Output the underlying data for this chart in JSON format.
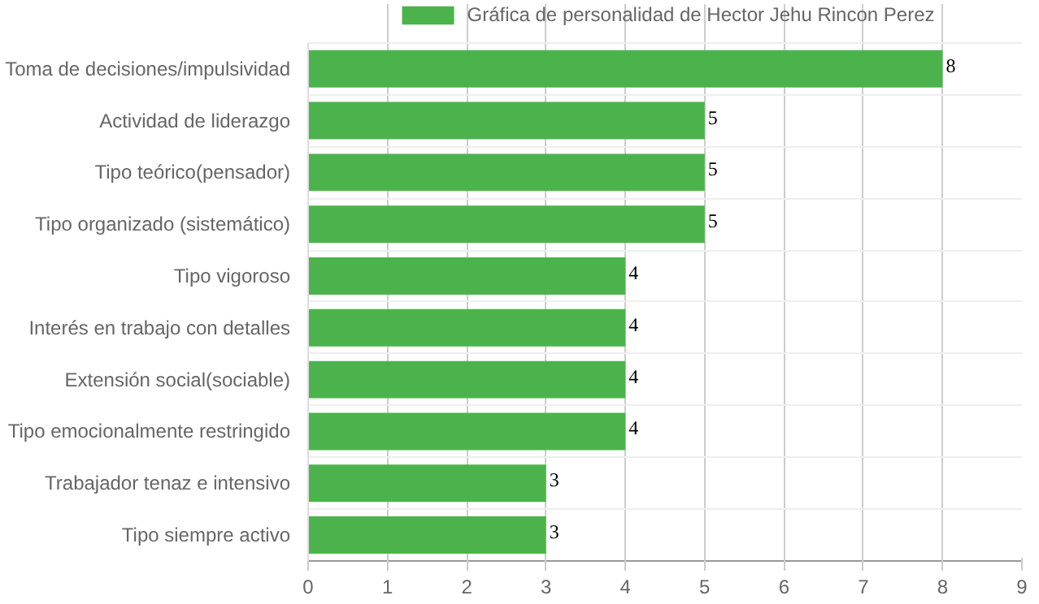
{
  "chart_data": {
    "type": "bar",
    "orientation": "horizontal",
    "categories": [
      "Toma de decisiones/impulsividad",
      "Actividad de liderazgo",
      "Tipo teórico(pensador)",
      "Tipo organizado (sistemático)",
      "Tipo vigoroso",
      "Interés en trabajo con detalles",
      "Extensión social(sociable)",
      "Tipo emocionalmente restringido",
      "Trabajador tenaz e intensivo",
      "Tipo siempre activo"
    ],
    "series": [
      {
        "name": "Gráfica de personalidad de Hector Jehu Rincon Perez",
        "color": "#4cb34c",
        "values": [
          8,
          5,
          5,
          5,
          4,
          4,
          4,
          4,
          3,
          3
        ]
      }
    ],
    "xlim": [
      0,
      9
    ],
    "xticks": [
      0,
      1,
      2,
      3,
      4,
      5,
      6,
      7,
      8,
      9
    ],
    "grid": true,
    "legend": "top",
    "data_labels": true
  }
}
